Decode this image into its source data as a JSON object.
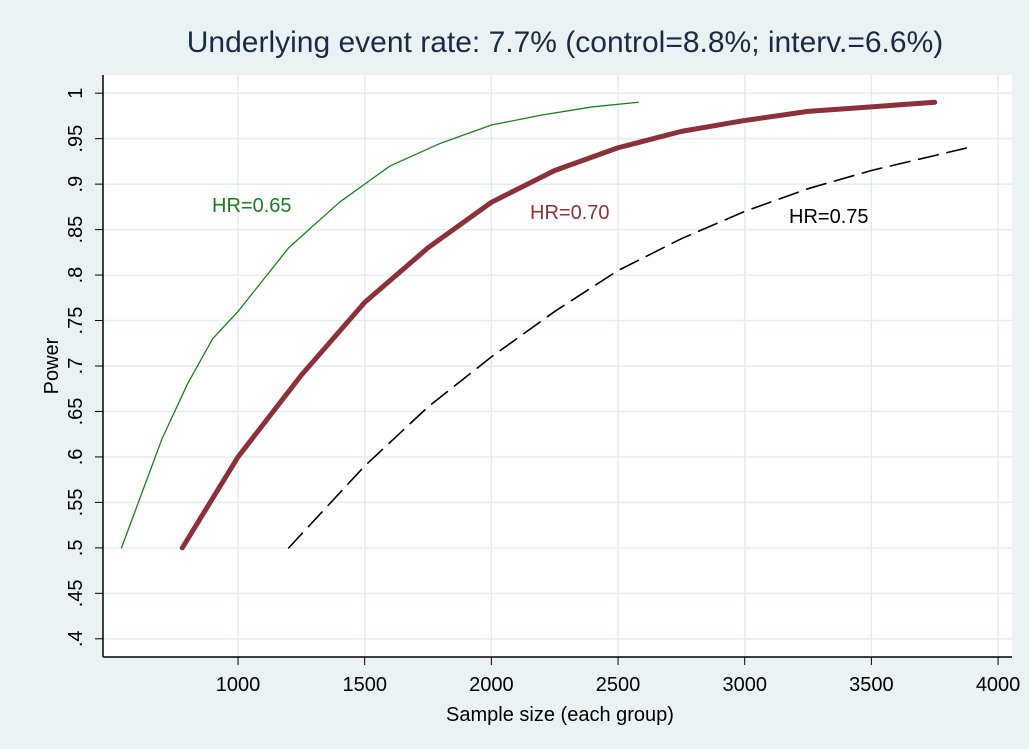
{
  "chart_data": {
    "type": "line",
    "title": "Underlying event rate: 7.7% (control=8.8%; interv.=6.6%)",
    "x_label": "Sample size (each group)",
    "y_label": "Power",
    "xlim": [
      467,
      4055
    ],
    "ylim": [
      0.38,
      1.02
    ],
    "xticks": [
      1000,
      1500,
      2000,
      2500,
      3000,
      3500,
      4000
    ],
    "yticks": [
      {
        "value": 0.4,
        "label": ".4"
      },
      {
        "value": 0.45,
        "label": ".45"
      },
      {
        "value": 0.5,
        "label": ".5"
      },
      {
        "value": 0.55,
        "label": ".55"
      },
      {
        "value": 0.6,
        "label": ".6"
      },
      {
        "value": 0.65,
        "label": ".65"
      },
      {
        "value": 0.7,
        "label": ".7"
      },
      {
        "value": 0.75,
        "label": ".75"
      },
      {
        "value": 0.8,
        "label": ".8"
      },
      {
        "value": 0.85,
        "label": ".85"
      },
      {
        "value": 0.9,
        "label": ".9"
      },
      {
        "value": 0.95,
        "label": ".95"
      },
      1
    ],
    "grid": true,
    "series": [
      {
        "name": "HR=0.65",
        "color": "#1e7d1e",
        "style": "solid",
        "x": [
          540,
          700,
          800,
          900,
          1000,
          1200,
          1400,
          1500,
          1600,
          1800,
          2000,
          2200,
          2400,
          2580
        ],
        "values": [
          0.5,
          0.62,
          0.68,
          0.73,
          0.76,
          0.83,
          0.88,
          0.9,
          0.92,
          0.945,
          0.965,
          0.976,
          0.985,
          0.99
        ]
      },
      {
        "name": "HR=0.70",
        "color": "#8b3139",
        "style": "solid",
        "x": [
          780,
          1000,
          1250,
          1500,
          1750,
          2000,
          2250,
          2500,
          2750,
          3000,
          3250,
          3500,
          3750
        ],
        "values": [
          0.5,
          0.6,
          0.69,
          0.77,
          0.83,
          0.88,
          0.915,
          0.94,
          0.958,
          0.97,
          0.98,
          0.985,
          0.99
        ]
      },
      {
        "name": "HR=0.75",
        "color": "#000000",
        "style": "dashed",
        "x": [
          1200,
          1500,
          1750,
          2000,
          2250,
          2500,
          2750,
          3000,
          3250,
          3500,
          3880
        ],
        "values": [
          0.5,
          0.59,
          0.655,
          0.71,
          0.76,
          0.805,
          0.84,
          0.87,
          0.895,
          0.915,
          0.94
        ]
      }
    ]
  }
}
